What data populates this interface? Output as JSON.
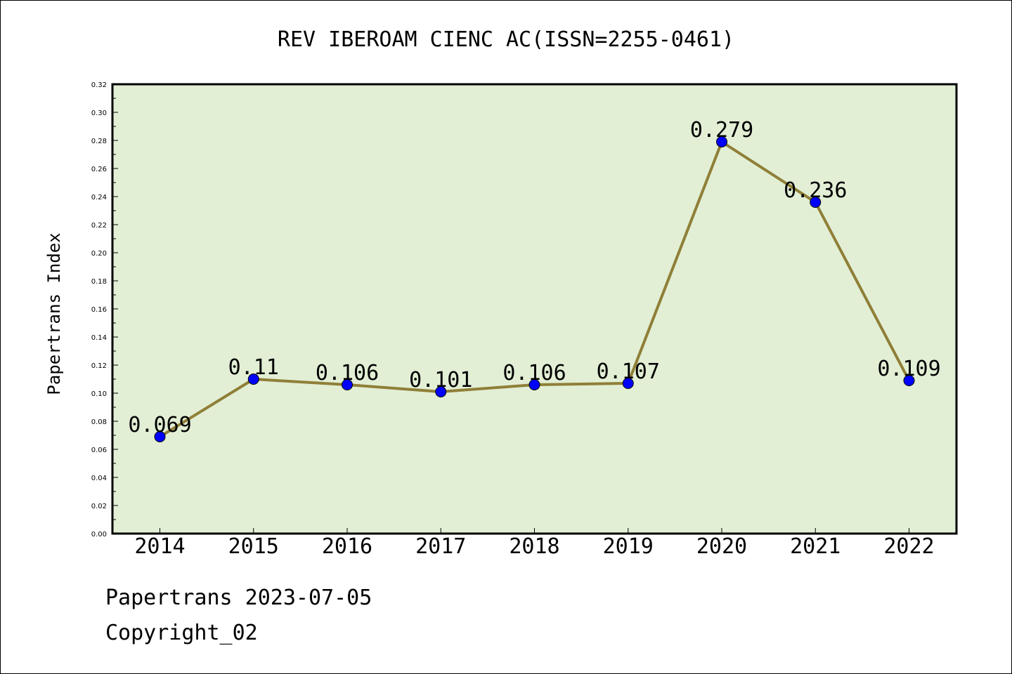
{
  "chart_data": {
    "type": "line",
    "title": "REV IBEROAM CIENC AC(ISSN=2255-0461)",
    "xlabel": "",
    "ylabel": "Papertrans Index",
    "categories": [
      "2014",
      "2015",
      "2016",
      "2017",
      "2018",
      "2019",
      "2020",
      "2021",
      "2022"
    ],
    "series": [
      {
        "values": [
          0.069,
          0.11,
          0.106,
          0.101,
          0.106,
          0.107,
          0.279,
          0.236,
          0.109
        ],
        "data_labels": [
          "0.069",
          "0.11",
          "0.106",
          "0.101",
          "0.106",
          "0.107",
          "0.279",
          "0.236",
          "0.109"
        ]
      }
    ],
    "ylim": [
      0,
      0.32
    ],
    "yticks": [
      "0.00",
      "0.02",
      "0.04",
      "0.06",
      "0.08",
      "0.10",
      "0.12",
      "0.14",
      "0.16",
      "0.18",
      "0.20",
      "0.22",
      "0.24",
      "0.26",
      "0.28",
      "0.30",
      "0.32"
    ],
    "grid": false,
    "legend": "none",
    "colors": {
      "plot_background": "#e2efd5",
      "line": "#8f7f37",
      "marker": "#0000ff"
    }
  },
  "footer": {
    "date_text": "Papertrans 2023-07-05",
    "copyright_text": "Copyright_02"
  }
}
